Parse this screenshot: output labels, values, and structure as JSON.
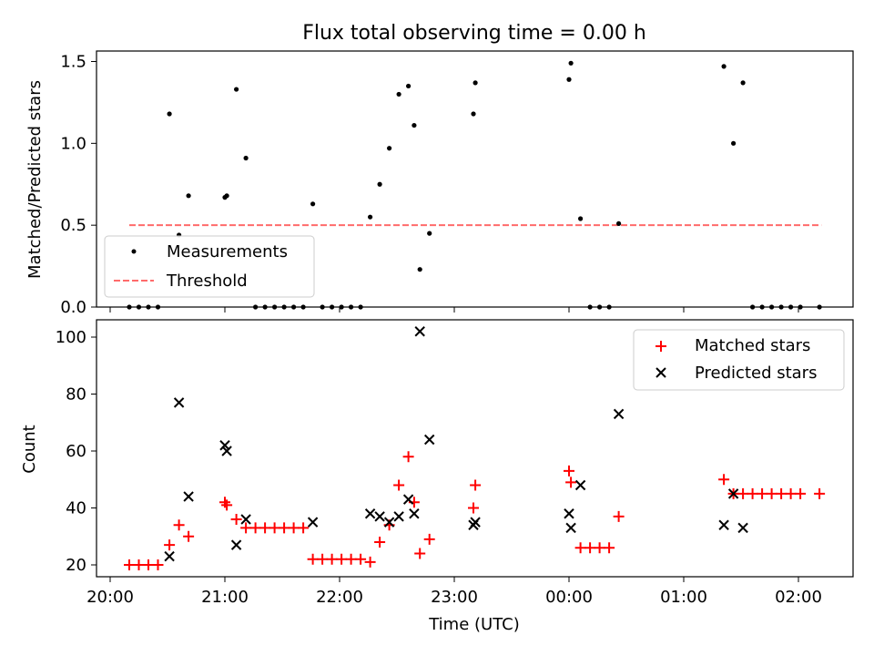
{
  "chart_data": [
    {
      "type": "scatter",
      "title": "Flux total observing time = 0.00 h",
      "ylabel": "Matched/Predicted stars",
      "xlabel": "",
      "ylim": [
        0,
        1.56
      ],
      "xlim": [
        "20:00",
        "02:30"
      ],
      "yticks": [
        0,
        0.5,
        1,
        1.5
      ],
      "ytick_labels": [
        "0.0",
        "0.5",
        "1.0",
        "1.5"
      ],
      "xtick_labels": [],
      "grid": false,
      "legend": "lower-left",
      "threshold": {
        "name": "Threshold",
        "value": 0.5,
        "x_start": "20:10",
        "x_end": "02:12",
        "color": "#ff6b6b",
        "style": "dashed"
      },
      "series": [
        {
          "name": "Measurements",
          "color": "#000000",
          "marker": "dot",
          "points": [
            [
              "20:10",
              0.0
            ],
            [
              "20:15",
              0.0
            ],
            [
              "20:20",
              0.0
            ],
            [
              "20:25",
              0.0
            ],
            [
              "20:31",
              1.18
            ],
            [
              "20:36",
              0.44
            ],
            [
              "20:41",
              0.68
            ],
            [
              "21:00",
              0.67
            ],
            [
              "21:01",
              0.68
            ],
            [
              "21:06",
              1.33
            ],
            [
              "21:11",
              0.91
            ],
            [
              "21:16",
              0.0
            ],
            [
              "21:21",
              0.0
            ],
            [
              "21:26",
              0.0
            ],
            [
              "21:31",
              0.0
            ],
            [
              "21:36",
              0.0
            ],
            [
              "21:41",
              0.0
            ],
            [
              "21:46",
              0.63
            ],
            [
              "21:51",
              0.0
            ],
            [
              "21:56",
              0.0
            ],
            [
              "22:01",
              0.0
            ],
            [
              "22:06",
              0.0
            ],
            [
              "22:11",
              0.0
            ],
            [
              "22:16",
              0.55
            ],
            [
              "22:21",
              0.75
            ],
            [
              "22:26",
              0.97
            ],
            [
              "22:31",
              1.3
            ],
            [
              "22:36",
              1.35
            ],
            [
              "22:39",
              1.11
            ],
            [
              "22:42",
              0.23
            ],
            [
              "22:47",
              0.45
            ],
            [
              "23:10",
              1.18
            ],
            [
              "23:11",
              1.37
            ],
            [
              "00:00",
              1.39
            ],
            [
              "00:01",
              1.49
            ],
            [
              "00:06",
              0.54
            ],
            [
              "00:11",
              0.0
            ],
            [
              "00:16",
              0.0
            ],
            [
              "00:21",
              0.0
            ],
            [
              "00:26",
              0.51
            ],
            [
              "01:21",
              1.47
            ],
            [
              "01:26",
              1.0
            ],
            [
              "01:31",
              1.37
            ],
            [
              "01:36",
              0.0
            ],
            [
              "01:41",
              0.0
            ],
            [
              "01:46",
              0.0
            ],
            [
              "01:51",
              0.0
            ],
            [
              "01:56",
              0.0
            ],
            [
              "02:01",
              0.0
            ],
            [
              "02:11",
              0.0
            ]
          ]
        }
      ]
    },
    {
      "type": "scatter",
      "title": "",
      "ylabel": "Count",
      "xlabel": "Time (UTC)",
      "ylim": [
        16,
        106
      ],
      "xlim": [
        "20:00",
        "02:30"
      ],
      "yticks": [
        20,
        40,
        60,
        80,
        100
      ],
      "ytick_labels": [
        "20",
        "40",
        "60",
        "80",
        "100"
      ],
      "xtick_labels": [
        "20:00",
        "21:00",
        "22:00",
        "23:00",
        "00:00",
        "01:00",
        "02:00"
      ],
      "grid": false,
      "legend": "top-right",
      "series": [
        {
          "name": "Matched stars",
          "color": "#ff0000",
          "marker": "plus",
          "points": [
            [
              "20:10",
              20
            ],
            [
              "20:15",
              20
            ],
            [
              "20:20",
              20
            ],
            [
              "20:25",
              20
            ],
            [
              "20:31",
              27
            ],
            [
              "20:36",
              34
            ],
            [
              "20:41",
              30
            ],
            [
              "21:00",
              42
            ],
            [
              "21:01",
              41
            ],
            [
              "21:06",
              36
            ],
            [
              "21:11",
              33
            ],
            [
              "21:16",
              33
            ],
            [
              "21:21",
              33
            ],
            [
              "21:26",
              33
            ],
            [
              "21:31",
              33
            ],
            [
              "21:36",
              33
            ],
            [
              "21:41",
              33
            ],
            [
              "21:46",
              22
            ],
            [
              "21:51",
              22
            ],
            [
              "21:56",
              22
            ],
            [
              "22:01",
              22
            ],
            [
              "22:06",
              22
            ],
            [
              "22:11",
              22
            ],
            [
              "22:16",
              21
            ],
            [
              "22:21",
              28
            ],
            [
              "22:26",
              34
            ],
            [
              "22:31",
              48
            ],
            [
              "22:36",
              58
            ],
            [
              "22:39",
              42
            ],
            [
              "22:42",
              24
            ],
            [
              "22:47",
              29
            ],
            [
              "23:10",
              40
            ],
            [
              "23:11",
              48
            ],
            [
              "00:00",
              53
            ],
            [
              "00:01",
              49
            ],
            [
              "00:06",
              26
            ],
            [
              "00:11",
              26
            ],
            [
              "00:16",
              26
            ],
            [
              "00:21",
              26
            ],
            [
              "00:26",
              37
            ],
            [
              "01:21",
              50
            ],
            [
              "01:26",
              45
            ],
            [
              "01:31",
              45
            ],
            [
              "01:36",
              45
            ],
            [
              "01:41",
              45
            ],
            [
              "01:46",
              45
            ],
            [
              "01:51",
              45
            ],
            [
              "01:56",
              45
            ],
            [
              "02:01",
              45
            ],
            [
              "02:11",
              45
            ]
          ]
        },
        {
          "name": "Predicted stars",
          "color": "#000000",
          "marker": "x",
          "points": [
            [
              "20:31",
              23
            ],
            [
              "20:36",
              77
            ],
            [
              "20:41",
              44
            ],
            [
              "21:00",
              62
            ],
            [
              "21:01",
              60
            ],
            [
              "21:06",
              27
            ],
            [
              "21:11",
              36
            ],
            [
              "21:46",
              35
            ],
            [
              "22:16",
              38
            ],
            [
              "22:21",
              37
            ],
            [
              "22:26",
              35
            ],
            [
              "22:31",
              37
            ],
            [
              "22:36",
              43
            ],
            [
              "22:39",
              38
            ],
            [
              "22:42",
              102
            ],
            [
              "22:47",
              64
            ],
            [
              "23:10",
              34
            ],
            [
              "23:11",
              35
            ],
            [
              "00:00",
              38
            ],
            [
              "00:01",
              33
            ],
            [
              "00:06",
              48
            ],
            [
              "00:26",
              73
            ],
            [
              "01:21",
              34
            ],
            [
              "01:26",
              45
            ],
            [
              "01:31",
              33
            ]
          ]
        }
      ]
    }
  ]
}
